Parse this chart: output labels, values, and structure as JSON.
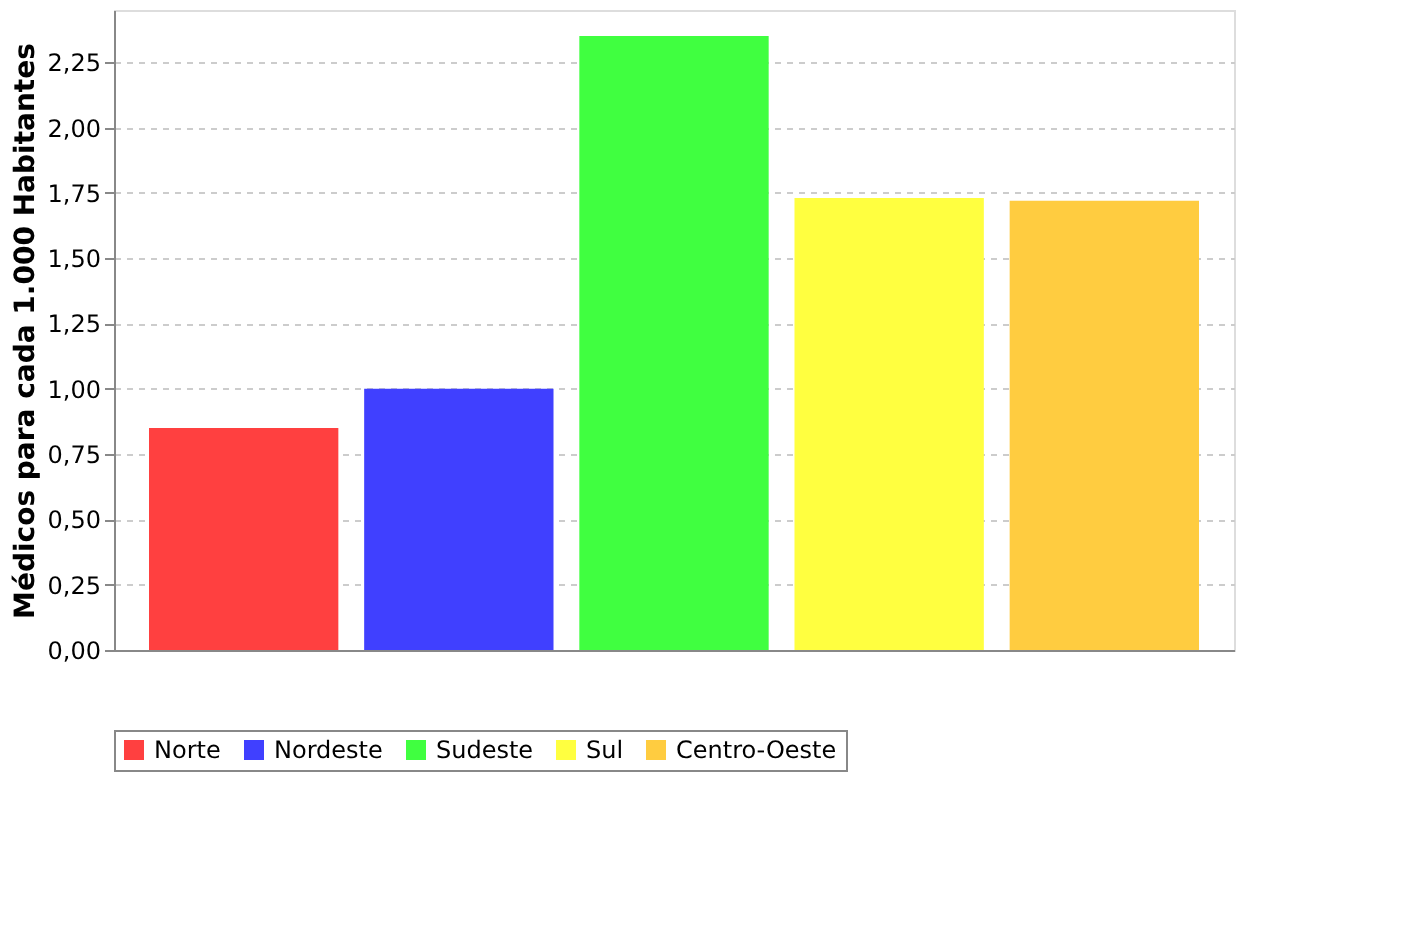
{
  "chart_data": {
    "type": "bar",
    "ylabel": "Médicos para cada 1.000 Habitantes",
    "categories": [
      null
    ],
    "series": [
      {
        "name": "Norte",
        "color": "#ff4040",
        "values": [
          0.85
        ]
      },
      {
        "name": "Nordeste",
        "color": "#4040ff",
        "values": [
          1.0
        ]
      },
      {
        "name": "Sudeste",
        "color": "#40ff40",
        "values": [
          2.35
        ]
      },
      {
        "name": "Sul",
        "color": "#ffff40",
        "values": [
          1.73
        ]
      },
      {
        "name": "Centro-Oeste",
        "color": "#ffcc40",
        "values": [
          1.72
        ]
      }
    ],
    "ylim": [
      0,
      2.45
    ],
    "yticks": [
      {
        "value": 0,
        "label": "0,00"
      },
      {
        "value": 0.25,
        "label": "0,25"
      },
      {
        "value": 0.5,
        "label": "0,50"
      },
      {
        "value": 0.75,
        "label": "0,75"
      },
      {
        "value": 1.0,
        "label": "1,00"
      },
      {
        "value": 1.25,
        "label": "1,25"
      },
      {
        "value": 1.5,
        "label": "1,50"
      },
      {
        "value": 1.75,
        "label": "1,75"
      },
      {
        "value": 2.0,
        "label": "2,00"
      },
      {
        "value": 2.25,
        "label": "2,25"
      }
    ],
    "grid": "y",
    "legend": "bottom",
    "tick_labels": "y"
  }
}
